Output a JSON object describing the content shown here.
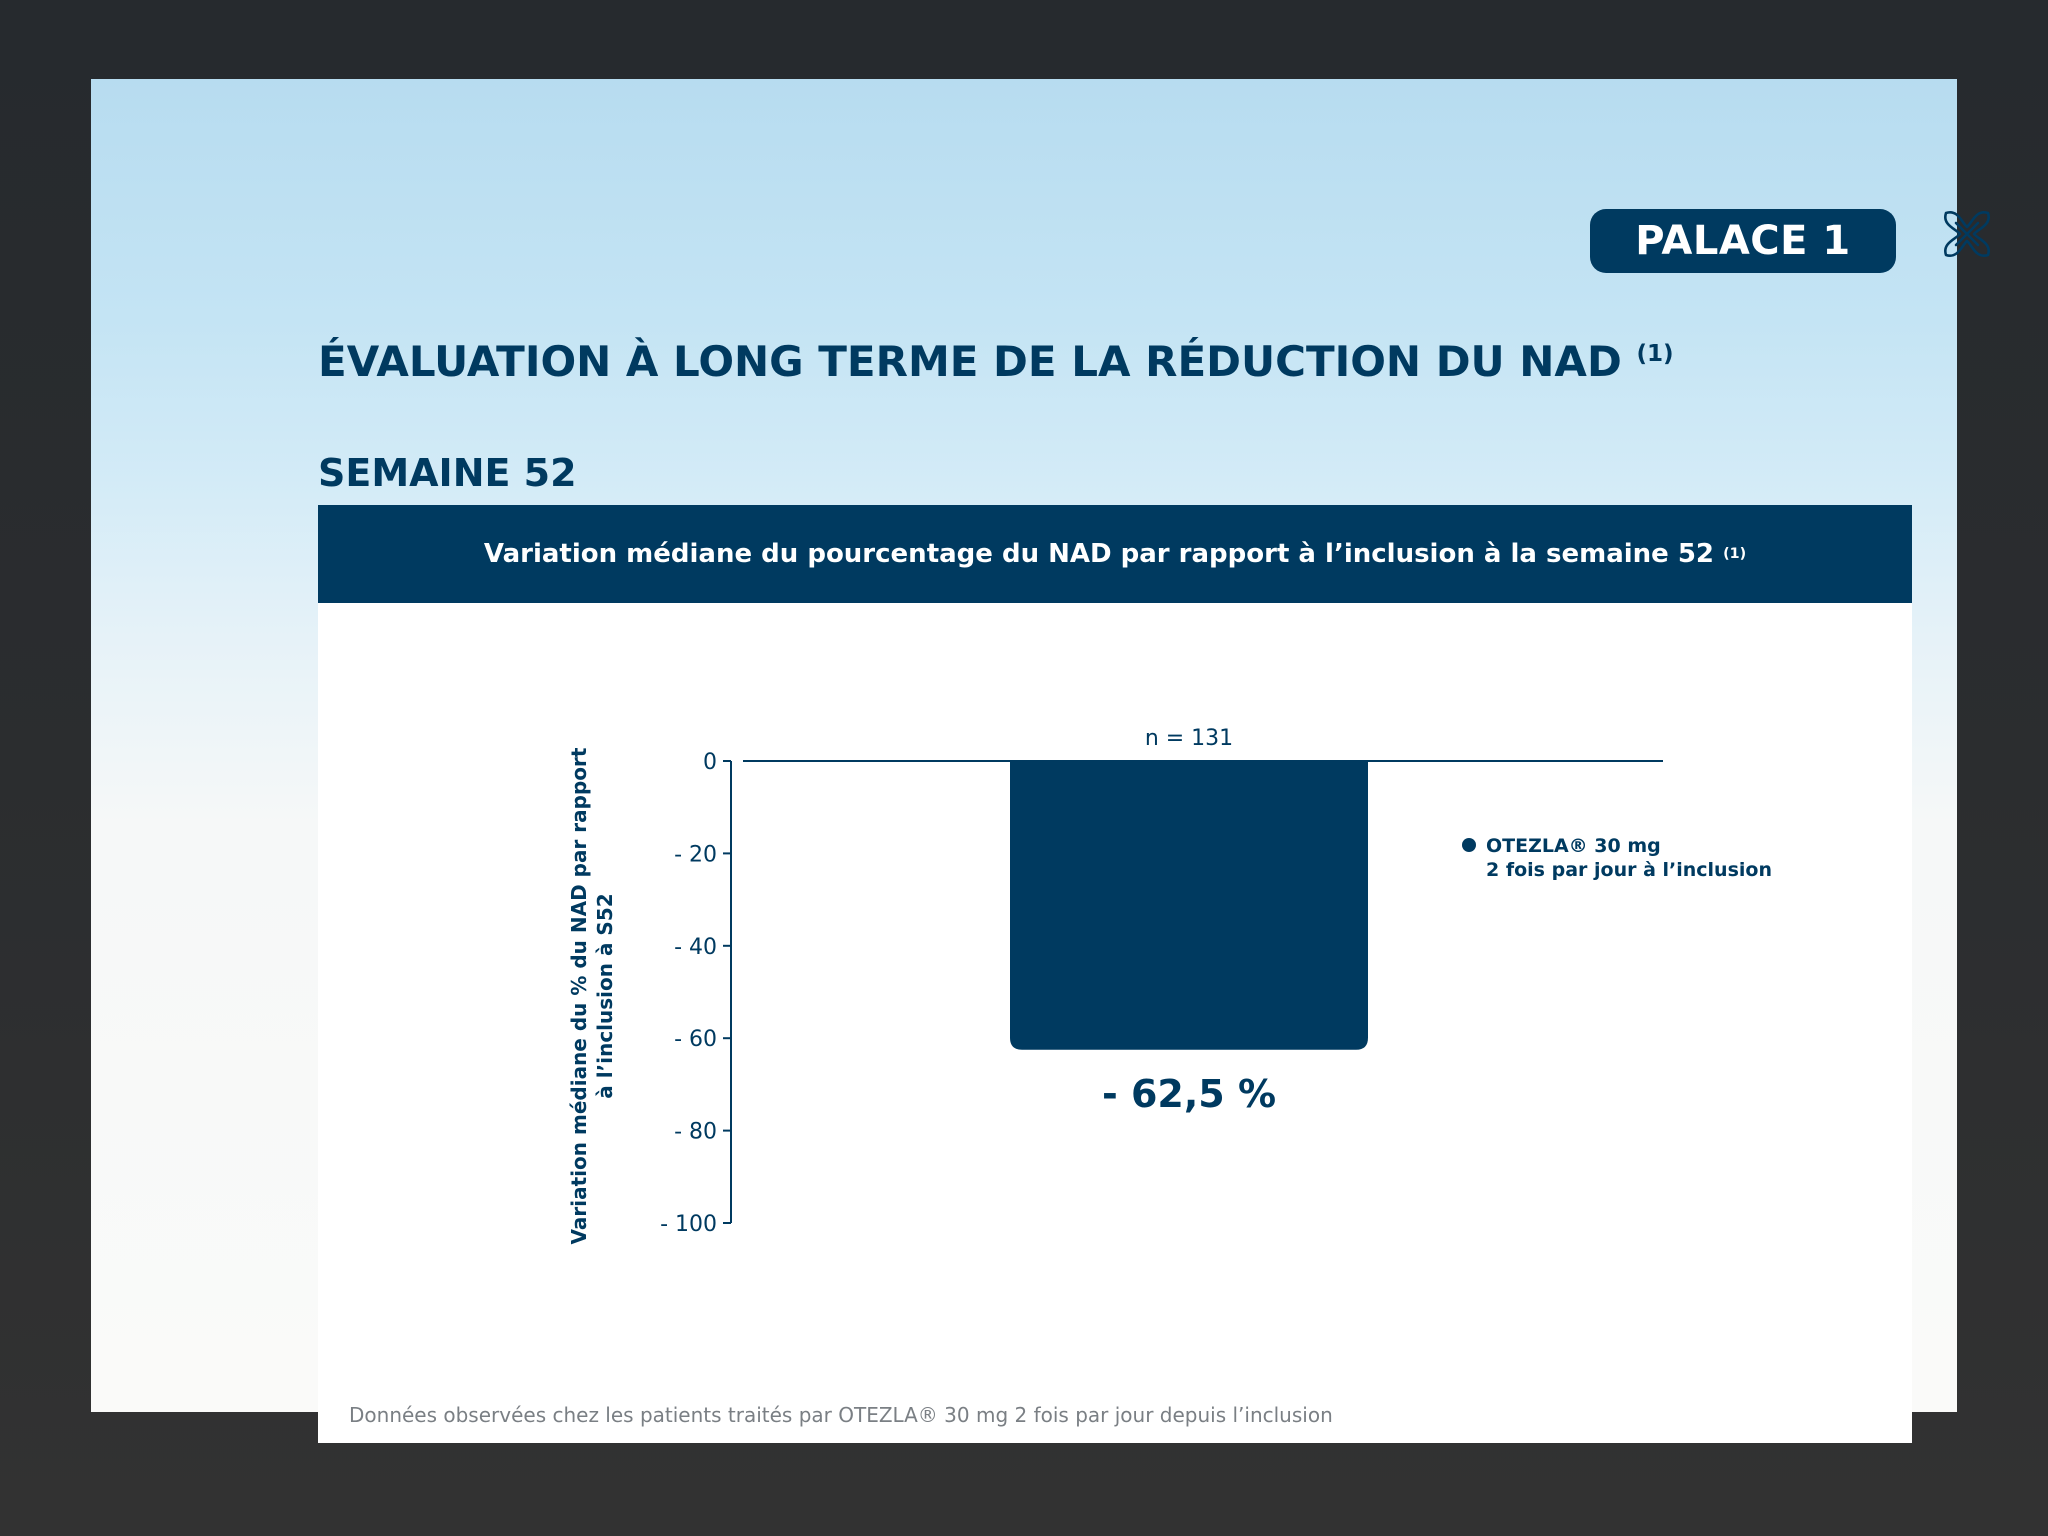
{
  "header": {
    "badge_label": "PALACE 1",
    "title": "ÉVALUATION  À LONG TERME DE LA RÉDUCTION DU NAD",
    "title_ref": "(1)",
    "subtitle": "SEMAINE 52"
  },
  "banner": {
    "text": "Variation médiane du pourcentage du NAD par rapport à l’inclusion à la semaine 52",
    "ref": "(1)"
  },
  "chart_data": {
    "type": "bar",
    "categories": [
      "OTEZLA® 30 mg 2 fois par jour à l’inclusion"
    ],
    "values": [
      -62.5
    ],
    "ylim": [
      -100,
      0
    ],
    "yticks": [
      0,
      -20,
      -40,
      -60,
      -80,
      -100
    ],
    "ytick_labels": [
      "0",
      "- 20",
      "- 40",
      "- 60",
      "- 80",
      "- 100"
    ],
    "ylabel_lines": [
      "Variation médiane du % du NAD par rapport",
      "à l’inclusion à S52"
    ],
    "bar_label": "- 62,5 %",
    "n_label": "n = 131",
    "legend_lines": [
      "OTEZLA® 30 mg",
      "2 fois par jour à l’inclusion"
    ],
    "legend_position": "right",
    "grid": false,
    "bar_color": "#003a60"
  },
  "footnote": "Données observées chez les patients traités par OTEZLA® 30 mg 2 fois par jour depuis l’inclusion",
  "colors": {
    "brand_navy": "#003a60",
    "footnote_gray": "#7a7f84"
  },
  "icons": {
    "close": "close-x-icon"
  }
}
